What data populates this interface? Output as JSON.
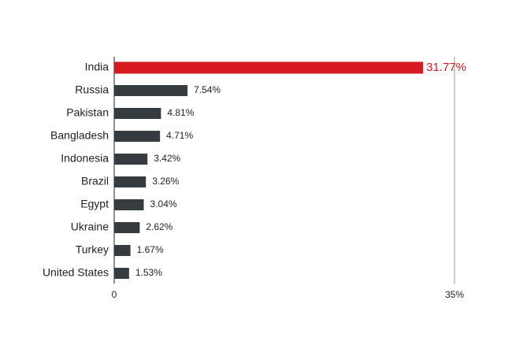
{
  "chart_data": {
    "type": "hbar",
    "categories": [
      "India",
      "Russia",
      "Pakistan",
      "Bangladesh",
      "Indonesia",
      "Brazil",
      "Egypt",
      "Ukraine",
      "Turkey",
      "United States"
    ],
    "values": [
      31.77,
      7.54,
      4.81,
      4.71,
      3.42,
      3.26,
      3.04,
      2.62,
      1.67,
      1.53
    ],
    "value_labels": [
      "31.77%",
      "7.54%",
      "4.81%",
      "4.71%",
      "3.42%",
      "3.26%",
      "3.04%",
      "2.62%",
      "1.67%",
      "1.53%"
    ],
    "colors": [
      "#d71920",
      "#363b40",
      "#363b40",
      "#363b40",
      "#363b40",
      "#363b40",
      "#363b40",
      "#363b40",
      "#363b40",
      "#363b40"
    ],
    "xlim": [
      0,
      35
    ],
    "xticks": [
      0,
      {
        "value": 35,
        "label": "35%"
      }
    ],
    "grid": true
  }
}
